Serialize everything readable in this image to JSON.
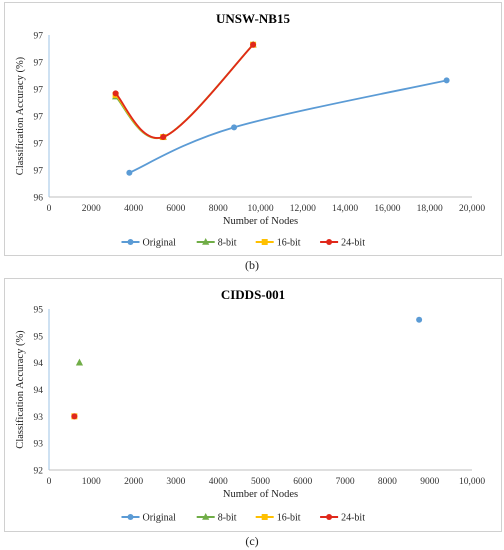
{
  "chart_data": [
    {
      "type": "line",
      "title": "UNSW-NB15",
      "xlabel": "Number of Nodes",
      "ylabel": "Classification Accuracy (%)",
      "xlim": [
        0,
        20000
      ],
      "ylim": [
        96,
        97
      ],
      "xtick_labels": [
        "0",
        "2000",
        "4000",
        "6000",
        "8000",
        "10,000",
        "12,000",
        "14,000",
        "16,000",
        "18,000",
        "20,000"
      ],
      "ytick_labels": [
        "96",
        "97",
        "97",
        "97",
        "97",
        "97",
        "97"
      ],
      "series": [
        {
          "name": "Original",
          "color": "#5b9bd5",
          "marker": "circle",
          "x": [
            3800,
            8750,
            18800
          ],
          "y": [
            96.15,
            96.43,
            96.72
          ]
        },
        {
          "name": "8-bit",
          "color": "#70ad47",
          "marker": "triangle",
          "x": [
            3150,
            5400,
            9650
          ],
          "y": [
            96.62,
            96.37,
            96.94
          ]
        },
        {
          "name": "16-bit",
          "color": "#ffc000",
          "marker": "square",
          "x": [
            3150,
            5400,
            9650
          ],
          "y": [
            96.63,
            96.37,
            96.94
          ]
        },
        {
          "name": "24-bit",
          "color": "#e0281b",
          "marker": "circle",
          "x": [
            3150,
            5400,
            9650
          ],
          "y": [
            96.64,
            96.37,
            96.94
          ]
        }
      ],
      "caption": "(b)"
    },
    {
      "type": "scatter",
      "title": "CIDDS-001",
      "xlabel": "Number of Nodes",
      "ylabel": "Classification Accuracy (%)",
      "xlim": [
        0,
        10000
      ],
      "ylim": [
        92,
        95
      ],
      "xtick_labels": [
        "0",
        "1000",
        "2000",
        "3000",
        "4000",
        "5000",
        "6000",
        "7000",
        "8000",
        "9000",
        "10,000"
      ],
      "ytick_labels": [
        "92",
        "93",
        "93",
        "94",
        "94",
        "95",
        "95"
      ],
      "series": [
        {
          "name": "Original",
          "color": "#5b9bd5",
          "marker": "circle",
          "x": [
            8750
          ],
          "y": [
            94.8
          ]
        },
        {
          "name": "8-bit",
          "color": "#70ad47",
          "marker": "triangle",
          "x": [
            720
          ],
          "y": [
            94.0
          ]
        },
        {
          "name": "16-bit",
          "color": "#ffc000",
          "marker": "square",
          "x": [
            600
          ],
          "y": [
            93.0
          ]
        },
        {
          "name": "24-bit",
          "color": "#e0281b",
          "marker": "circle",
          "x": [
            600
          ],
          "y": [
            93.0
          ]
        }
      ],
      "caption": "(c)"
    }
  ]
}
